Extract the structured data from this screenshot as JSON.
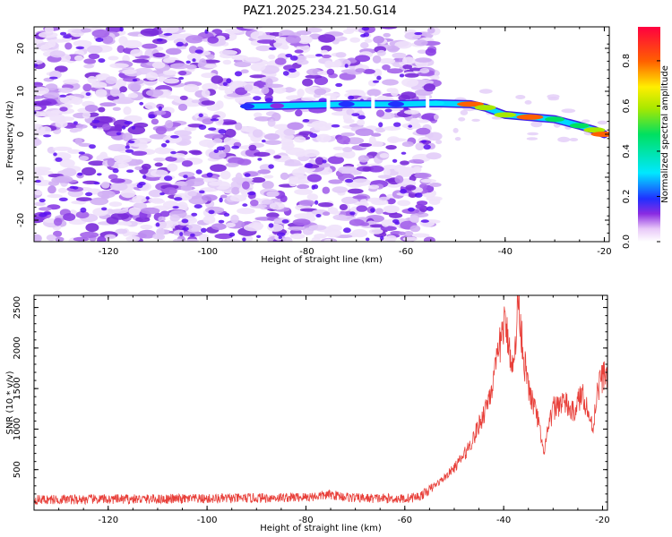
{
  "title": "PAZ1.2025.234.21.50.G14",
  "chart_data": [
    {
      "type": "heatmap",
      "xlabel": "Height of straight line (km)",
      "ylabel": "Frequency (Hz)",
      "xlim": [
        -135,
        -19
      ],
      "ylim": [
        -25,
        25
      ],
      "xticks": [
        -120,
        -100,
        -80,
        -60,
        -40,
        -20
      ],
      "yticks": [
        -20,
        -10,
        0,
        10,
        20
      ],
      "colorbar": {
        "label": "Normalized spectral amplitude",
        "range": [
          0,
          0.95
        ],
        "ticks": [
          0.0,
          0.2,
          0.4,
          0.6,
          0.8
        ]
      },
      "ridge": [
        {
          "x": -92,
          "y": 6.5,
          "value": 0.2
        },
        {
          "x": -86,
          "y": 6.6,
          "value": 0.18
        },
        {
          "x": -72,
          "y": 7,
          "value": 0.3
        },
        {
          "x": -62,
          "y": 7,
          "value": 0.3
        },
        {
          "x": -54,
          "y": 7.2,
          "value": 0.35
        },
        {
          "x": -47,
          "y": 7,
          "value": 0.9
        },
        {
          "x": -44,
          "y": 6.2,
          "value": 0.6
        },
        {
          "x": -40,
          "y": 4.5,
          "value": 0.65
        },
        {
          "x": -35,
          "y": 4,
          "value": 0.9
        },
        {
          "x": -30,
          "y": 3.5,
          "value": 0.5
        },
        {
          "x": -25,
          "y": 2,
          "value": 0.5
        },
        {
          "x": -22,
          "y": 1,
          "value": 0.6
        },
        {
          "x": -20,
          "y": 0,
          "value": 0.9
        }
      ]
    },
    {
      "type": "line",
      "xlabel": "Height of straight line (km)",
      "ylabel": "SNR (10 * v/v)",
      "xlim": [
        -135,
        -19
      ],
      "ylim": [
        0,
        2650
      ],
      "xticks": [
        -120,
        -100,
        -80,
        -60,
        -40,
        -20
      ],
      "yticks": [
        500,
        1000,
        1500,
        2000,
        2500
      ],
      "color": "#e8403a",
      "series": [
        {
          "name": "SNR",
          "x": [
            -135,
            -100,
            -80,
            -75,
            -70,
            -60,
            -57,
            -55,
            -52,
            -50,
            -48,
            -46,
            -44,
            -42,
            -40,
            -39,
            -38,
            -37,
            -36,
            -35,
            -34,
            -33,
            -32,
            -30,
            -28,
            -26,
            -24,
            -22,
            -21,
            -20,
            -19
          ],
          "y": [
            130,
            140,
            160,
            190,
            150,
            140,
            170,
            250,
            400,
            520,
            680,
            900,
            1200,
            1600,
            2300,
            2100,
            1700,
            2650,
            1900,
            1500,
            1300,
            1100,
            700,
            1250,
            1350,
            1200,
            1450,
            1000,
            1500,
            1650,
            1700
          ]
        }
      ]
    }
  ]
}
